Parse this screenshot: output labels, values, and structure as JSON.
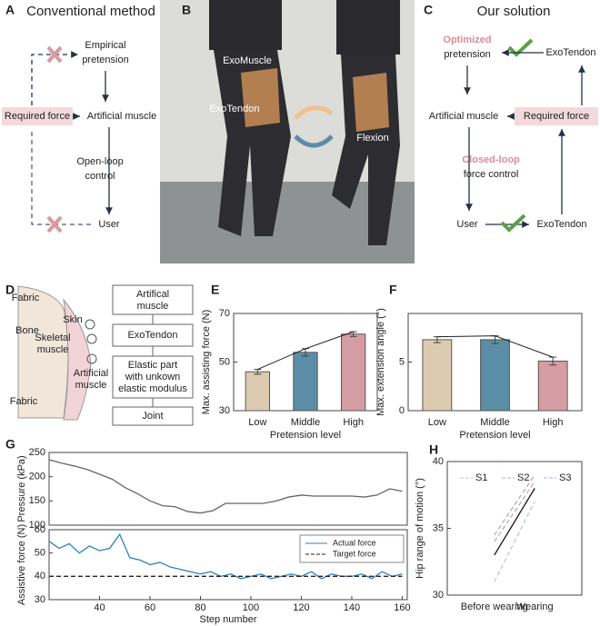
{
  "panels": {
    "A": {
      "letter": "A",
      "title": "Conventional method",
      "empirical": [
        "Empirical",
        "pretension"
      ],
      "required_force": "Required force",
      "artificial_muscle": "Artificial muscle",
      "control": [
        "Open-loop",
        "control"
      ],
      "user": "User"
    },
    "B": {
      "letter": "B",
      "exomuscle": "ExoMuscle",
      "exotendon": "ExoTendon",
      "flexion": "Flexion"
    },
    "C": {
      "letter": "C",
      "title": "Our solution",
      "optimized": "Optimized",
      "pretension": "pretension",
      "exotendon_top": "ExoTendon",
      "artificial_muscle": "Artificial muscle",
      "required_force": "Required force",
      "closed_loop": "Closed-loop",
      "force_control": "force control",
      "user": "User",
      "exotendon_bottom": "ExoTendon"
    },
    "D": {
      "letter": "D",
      "fabric_top": "Fabric",
      "bone": "Bone",
      "skin": "Skin",
      "skeletal": [
        "Skeletal",
        "muscle"
      ],
      "artificial": [
        "Artificial",
        "muscle"
      ],
      "fabric_bottom": "Fabric",
      "boxes": [
        [
          "Artifical",
          "muscle"
        ],
        [
          "ExoTendon"
        ],
        [
          "Elastic part",
          "with unkown",
          "elastic modulus"
        ],
        [
          "Joint"
        ]
      ]
    },
    "G": {
      "letter": "G"
    }
  },
  "chart_data": [
    {
      "panel": "E",
      "type": "bar",
      "categories": [
        "Low",
        "Middle",
        "High"
      ],
      "values": [
        46,
        54,
        61.5
      ],
      "errors": [
        1,
        1.5,
        1
      ],
      "colors": [
        "#dccbb1",
        "#5b8ea6",
        "#d49da3"
      ],
      "ylim": [
        30,
        70
      ],
      "yticks": [
        30,
        50,
        70
      ],
      "xlabel": "Pretension level",
      "ylabel": "Max. assisting force (N)",
      "trend_line": true
    },
    {
      "panel": "F",
      "type": "bar",
      "categories": [
        "Low",
        "Middle",
        "High"
      ],
      "values": [
        7.3,
        7.3,
        5.1
      ],
      "errors": [
        0.3,
        0.4,
        0.4
      ],
      "colors": [
        "#dccbb1",
        "#5b8ea6",
        "#d49da3"
      ],
      "ylim": [
        0,
        10
      ],
      "yticks": [
        0,
        5
      ],
      "xlabel": "Pretension level",
      "ylabel": "Max. extension angle (°)",
      "trend_line": true
    },
    {
      "type": "line",
      "x": [
        20,
        25,
        30,
        35,
        40,
        45,
        50,
        55,
        60,
        65,
        70,
        75,
        80,
        85,
        90,
        95,
        100,
        105,
        110,
        115,
        120,
        125,
        130,
        135,
        140,
        145,
        150,
        155,
        160
      ],
      "xlim": [
        20,
        162
      ],
      "ylim": [
        100,
        250
      ],
      "yticks": [
        100,
        150,
        200,
        250
      ],
      "ylabel": "Pressure (kPa)",
      "series": [
        {
          "color": "#666666",
          "values": [
            235,
            228,
            222,
            215,
            205,
            195,
            178,
            165,
            150,
            140,
            138,
            128,
            125,
            130,
            145,
            145,
            145,
            145,
            150,
            158,
            162,
            160,
            160,
            160,
            160,
            158,
            162,
            175,
            170
          ]
        }
      ]
    },
    {
      "type": "line",
      "x": [
        20,
        24,
        28,
        32,
        36,
        40,
        44,
        48,
        52,
        56,
        60,
        64,
        68,
        72,
        76,
        80,
        84,
        88,
        92,
        96,
        100,
        104,
        108,
        112,
        116,
        120,
        124,
        128,
        132,
        136,
        140,
        144,
        148,
        152,
        156,
        160
      ],
      "xlim": [
        20,
        162
      ],
      "ylim": [
        30,
        60
      ],
      "yticks": [
        30,
        40,
        50,
        60
      ],
      "xticks": [
        40,
        60,
        80,
        100,
        120,
        140,
        160
      ],
      "xlabel": "Step number",
      "ylabel": "Assistive force (N)",
      "legend": "upper right",
      "series": [
        {
          "name": "Actual force",
          "color": "#2f7fc1",
          "values": [
            55,
            52,
            54,
            50,
            53,
            51,
            52,
            58,
            48,
            47,
            45,
            46,
            44,
            43,
            42,
            41,
            42,
            40,
            41,
            39,
            40,
            41,
            39,
            40,
            41,
            40,
            42,
            39,
            41,
            40,
            40,
            41,
            39,
            42,
            40,
            41
          ]
        },
        {
          "name": "Target force",
          "color": "#222222",
          "dashed": true,
          "values": [
            40,
            40,
            40,
            40,
            40,
            40,
            40,
            40,
            40,
            40,
            40,
            40,
            40,
            40,
            40,
            40,
            40,
            40,
            40,
            40,
            40,
            40,
            40,
            40,
            40,
            40,
            40,
            40,
            40,
            40,
            40,
            40,
            40,
            40,
            40,
            40
          ]
        }
      ]
    },
    {
      "panel": "H",
      "type": "line",
      "categories": [
        "Before wearing",
        "Wearing"
      ],
      "ylim": [
        30,
        40
      ],
      "yticks": [
        30,
        35,
        40
      ],
      "ylabel": "Hip range of motion (°)",
      "legend": "upper left",
      "series": [
        {
          "name": "S1",
          "color": "#c4cbb8",
          "dashed": true,
          "values": [
            31,
            37
          ]
        },
        {
          "name": "S2",
          "color": "#dba2aa",
          "dashed": true,
          "values": [
            34,
            38.5
          ]
        },
        {
          "name": "S3",
          "color": "#9fb2c8",
          "dashed": true,
          "values": [
            34.5,
            39
          ]
        },
        {
          "color": "#111111",
          "values": [
            33,
            38
          ]
        }
      ]
    }
  ]
}
